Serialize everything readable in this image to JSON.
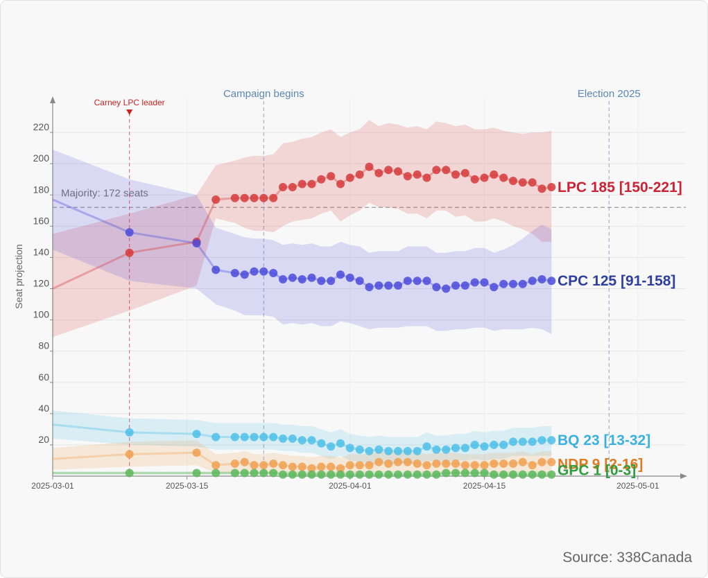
{
  "chart_data": {
    "type": "line",
    "ylabel": "Seat projection",
    "xlabel": "",
    "y_ticks": [
      20,
      40,
      60,
      80,
      100,
      120,
      140,
      160,
      180,
      200,
      220
    ],
    "x_ticks": [
      "2025-03-01",
      "2025-03-15",
      "2025-04-01",
      "2025-04-15",
      "2025-05-01"
    ],
    "xlim": [
      "2025-03-01",
      "2025-05-06"
    ],
    "ylim": [
      0,
      240
    ],
    "grid": true,
    "majority": {
      "value": 172,
      "label": "Majority: 172 seats"
    },
    "events": [
      {
        "date": "2025-03-09",
        "label": "Carney LPC leader",
        "color": "#cc2222",
        "marker": true
      },
      {
        "date": "2025-03-23",
        "label": "Campaign begins",
        "color": "#5a86b8",
        "marker": false
      },
      {
        "date": "2025-04-28",
        "label": "Election 2025",
        "color": "#5a86b8",
        "marker": false
      }
    ],
    "series": [
      {
        "name": "LPC",
        "end_label": "LPC 185 [150-221]",
        "color": "#d63a3a",
        "label_color": "#cc2233",
        "x": [
          "2025-03-01",
          "2025-03-09",
          "2025-03-16",
          "2025-03-18",
          "2025-03-20",
          "2025-03-21",
          "2025-03-22",
          "2025-03-23",
          "2025-03-24",
          "2025-03-25",
          "2025-03-26",
          "2025-03-27",
          "2025-03-28",
          "2025-03-29",
          "2025-03-30",
          "2025-03-31",
          "2025-04-01",
          "2025-04-02",
          "2025-04-03",
          "2025-04-04",
          "2025-04-05",
          "2025-04-06",
          "2025-04-07",
          "2025-04-08",
          "2025-04-09",
          "2025-04-10",
          "2025-04-11",
          "2025-04-12",
          "2025-04-13",
          "2025-04-14",
          "2025-04-15",
          "2025-04-16",
          "2025-04-17",
          "2025-04-18",
          "2025-04-19",
          "2025-04-20",
          "2025-04-21",
          "2025-04-22"
        ],
        "values": [
          120,
          143,
          150,
          177,
          178,
          178,
          178,
          178,
          178,
          185,
          185,
          187,
          187,
          190,
          192,
          187,
          191,
          193,
          198,
          194,
          196,
          195,
          192,
          193,
          191,
          196,
          196,
          193,
          194,
          190,
          191,
          193,
          191,
          189,
          188,
          188,
          184,
          185
        ],
        "band_low": [
          89,
          106,
          122,
          165,
          162,
          159,
          157,
          157,
          156,
          160,
          163,
          164,
          165,
          168,
          170,
          163,
          167,
          170,
          175,
          172,
          172,
          171,
          168,
          168,
          165,
          170,
          170,
          166,
          167,
          163,
          163,
          165,
          163,
          160,
          158,
          155,
          150,
          150
        ],
        "band_high": [
          155,
          168,
          180,
          199,
          202,
          204,
          205,
          205,
          206,
          213,
          214,
          216,
          217,
          220,
          222,
          217,
          220,
          222,
          228,
          224,
          226,
          225,
          223,
          224,
          222,
          227,
          226,
          224,
          225,
          222,
          222,
          223,
          221,
          220,
          219,
          220,
          220,
          221
        ]
      },
      {
        "name": "CPC",
        "end_label": "CPC 125 [91-158]",
        "color": "#4b4bdc",
        "label_color": "#2f3f9e",
        "x": [
          "2025-03-01",
          "2025-03-09",
          "2025-03-16",
          "2025-03-18",
          "2025-03-20",
          "2025-03-21",
          "2025-03-22",
          "2025-03-23",
          "2025-03-24",
          "2025-03-25",
          "2025-03-26",
          "2025-03-27",
          "2025-03-28",
          "2025-03-29",
          "2025-03-30",
          "2025-03-31",
          "2025-04-01",
          "2025-04-02",
          "2025-04-03",
          "2025-04-04",
          "2025-04-05",
          "2025-04-06",
          "2025-04-07",
          "2025-04-08",
          "2025-04-09",
          "2025-04-10",
          "2025-04-11",
          "2025-04-12",
          "2025-04-13",
          "2025-04-14",
          "2025-04-15",
          "2025-04-16",
          "2025-04-17",
          "2025-04-18",
          "2025-04-19",
          "2025-04-20",
          "2025-04-21",
          "2025-04-22"
        ],
        "values": [
          177,
          156,
          149,
          132,
          130,
          129,
          131,
          131,
          130,
          126,
          127,
          126,
          127,
          125,
          125,
          129,
          127,
          125,
          121,
          122,
          122,
          122,
          125,
          125,
          125,
          121,
          120,
          122,
          122,
          124,
          124,
          121,
          123,
          123,
          123,
          125,
          126,
          125
        ],
        "band_low": [
          145,
          125,
          120,
          110,
          106,
          103,
          103,
          103,
          102,
          97,
          98,
          97,
          98,
          96,
          96,
          99,
          98,
          96,
          94,
          95,
          95,
          95,
          96,
          96,
          96,
          93,
          93,
          94,
          94,
          95,
          95,
          93,
          94,
          94,
          94,
          95,
          94,
          91
        ],
        "band_high": [
          209,
          190,
          180,
          159,
          155,
          153,
          152,
          152,
          151,
          148,
          149,
          148,
          149,
          147,
          147,
          150,
          148,
          147,
          143,
          144,
          144,
          144,
          147,
          147,
          147,
          143,
          143,
          144,
          144,
          146,
          146,
          143,
          145,
          148,
          152,
          157,
          161,
          158
        ]
      },
      {
        "name": "BQ",
        "end_label": "BQ 23 [13-32]",
        "color": "#4cbfe8",
        "label_color": "#39b0e0",
        "x": [
          "2025-03-01",
          "2025-03-09",
          "2025-03-16",
          "2025-03-18",
          "2025-03-20",
          "2025-03-21",
          "2025-03-22",
          "2025-03-23",
          "2025-03-24",
          "2025-03-25",
          "2025-03-26",
          "2025-03-27",
          "2025-03-28",
          "2025-03-29",
          "2025-03-30",
          "2025-03-31",
          "2025-04-01",
          "2025-04-02",
          "2025-04-03",
          "2025-04-04",
          "2025-04-05",
          "2025-04-06",
          "2025-04-07",
          "2025-04-08",
          "2025-04-09",
          "2025-04-10",
          "2025-04-11",
          "2025-04-12",
          "2025-04-13",
          "2025-04-14",
          "2025-04-15",
          "2025-04-16",
          "2025-04-17",
          "2025-04-18",
          "2025-04-19",
          "2025-04-20",
          "2025-04-21",
          "2025-04-22"
        ],
        "values": [
          33,
          28,
          27,
          25,
          25,
          25,
          25,
          25,
          25,
          24,
          24,
          23,
          23,
          21,
          19,
          21,
          18,
          17,
          16,
          17,
          16,
          16,
          16,
          16,
          19,
          17,
          17,
          18,
          18,
          20,
          19,
          20,
          20,
          22,
          22,
          22,
          23,
          23
        ],
        "band_low": [
          24,
          20,
          19,
          17,
          17,
          17,
          17,
          17,
          17,
          16,
          16,
          15,
          15,
          13,
          11,
          13,
          10,
          9,
          8,
          9,
          8,
          8,
          8,
          8,
          10,
          9,
          9,
          10,
          10,
          11,
          10,
          11,
          11,
          13,
          13,
          13,
          13,
          13
        ],
        "band_high": [
          42,
          37,
          36,
          34,
          34,
          34,
          34,
          34,
          34,
          33,
          33,
          32,
          32,
          30,
          28,
          30,
          27,
          26,
          25,
          26,
          25,
          25,
          25,
          25,
          28,
          26,
          26,
          27,
          27,
          29,
          28,
          29,
          29,
          31,
          31,
          31,
          32,
          32
        ]
      },
      {
        "name": "NDP",
        "end_label": "NDP 9 [2-16]",
        "color": "#f0a050",
        "label_color": "#e07b1f",
        "x": [
          "2025-03-01",
          "2025-03-09",
          "2025-03-16",
          "2025-03-18",
          "2025-03-20",
          "2025-03-21",
          "2025-03-22",
          "2025-03-23",
          "2025-03-24",
          "2025-03-25",
          "2025-03-26",
          "2025-03-27",
          "2025-03-28",
          "2025-03-29",
          "2025-03-30",
          "2025-03-31",
          "2025-04-01",
          "2025-04-02",
          "2025-04-03",
          "2025-04-04",
          "2025-04-05",
          "2025-04-06",
          "2025-04-07",
          "2025-04-08",
          "2025-04-09",
          "2025-04-10",
          "2025-04-11",
          "2025-04-12",
          "2025-04-13",
          "2025-04-14",
          "2025-04-15",
          "2025-04-16",
          "2025-04-17",
          "2025-04-18",
          "2025-04-19",
          "2025-04-20",
          "2025-04-21",
          "2025-04-22"
        ],
        "values": [
          11,
          14,
          15,
          7,
          8,
          9,
          7,
          7,
          8,
          7,
          6,
          6,
          5,
          6,
          6,
          5,
          7,
          7,
          7,
          9,
          8,
          9,
          9,
          8,
          7,
          8,
          8,
          8,
          7,
          7,
          7,
          8,
          8,
          8,
          9,
          7,
          9,
          9
        ],
        "band_low": [
          4,
          6,
          7,
          2,
          2,
          3,
          2,
          2,
          2,
          2,
          1,
          1,
          1,
          1,
          1,
          1,
          2,
          2,
          2,
          3,
          2,
          3,
          3,
          2,
          2,
          2,
          2,
          2,
          2,
          2,
          2,
          2,
          2,
          2,
          3,
          2,
          2,
          2
        ],
        "band_high": [
          18,
          22,
          23,
          14,
          15,
          16,
          14,
          14,
          15,
          14,
          13,
          13,
          12,
          13,
          13,
          12,
          14,
          14,
          14,
          16,
          15,
          16,
          16,
          15,
          14,
          15,
          15,
          15,
          14,
          14,
          14,
          15,
          15,
          15,
          16,
          14,
          16,
          16
        ]
      },
      {
        "name": "GPC",
        "end_label": "GPC 1 [0-3]",
        "color": "#5cb85c",
        "label_color": "#2e9e3e",
        "x": [
          "2025-03-01",
          "2025-03-09",
          "2025-03-16",
          "2025-03-18",
          "2025-03-20",
          "2025-03-21",
          "2025-03-22",
          "2025-03-23",
          "2025-03-24",
          "2025-03-25",
          "2025-03-26",
          "2025-03-27",
          "2025-03-28",
          "2025-03-29",
          "2025-03-30",
          "2025-03-31",
          "2025-04-01",
          "2025-04-02",
          "2025-04-03",
          "2025-04-04",
          "2025-04-05",
          "2025-04-06",
          "2025-04-07",
          "2025-04-08",
          "2025-04-09",
          "2025-04-10",
          "2025-04-11",
          "2025-04-12",
          "2025-04-13",
          "2025-04-14",
          "2025-04-15",
          "2025-04-16",
          "2025-04-17",
          "2025-04-18",
          "2025-04-19",
          "2025-04-20",
          "2025-04-21",
          "2025-04-22"
        ],
        "values": [
          2,
          2,
          2,
          2,
          2,
          2,
          2,
          2,
          2,
          1,
          1,
          1,
          1,
          1,
          1,
          1,
          1,
          1,
          1,
          1,
          1,
          1,
          1,
          1,
          1,
          1,
          2,
          2,
          2,
          2,
          2,
          1,
          1,
          1,
          1,
          1,
          1,
          1
        ],
        "band_low": [
          1,
          1,
          1,
          1,
          1,
          1,
          1,
          1,
          1,
          0,
          0,
          0,
          0,
          0,
          0,
          0,
          0,
          0,
          0,
          0,
          0,
          0,
          0,
          0,
          0,
          0,
          0,
          0,
          0,
          0,
          0,
          0,
          0,
          0,
          0,
          0,
          0,
          0
        ],
        "band_high": [
          3,
          3,
          3,
          3,
          3,
          3,
          3,
          3,
          3,
          3,
          3,
          3,
          3,
          3,
          3,
          3,
          3,
          3,
          3,
          3,
          3,
          3,
          3,
          3,
          3,
          3,
          3,
          3,
          3,
          3,
          3,
          3,
          3,
          3,
          3,
          3,
          3,
          3
        ]
      }
    ]
  },
  "source": "Source: 338Canada"
}
